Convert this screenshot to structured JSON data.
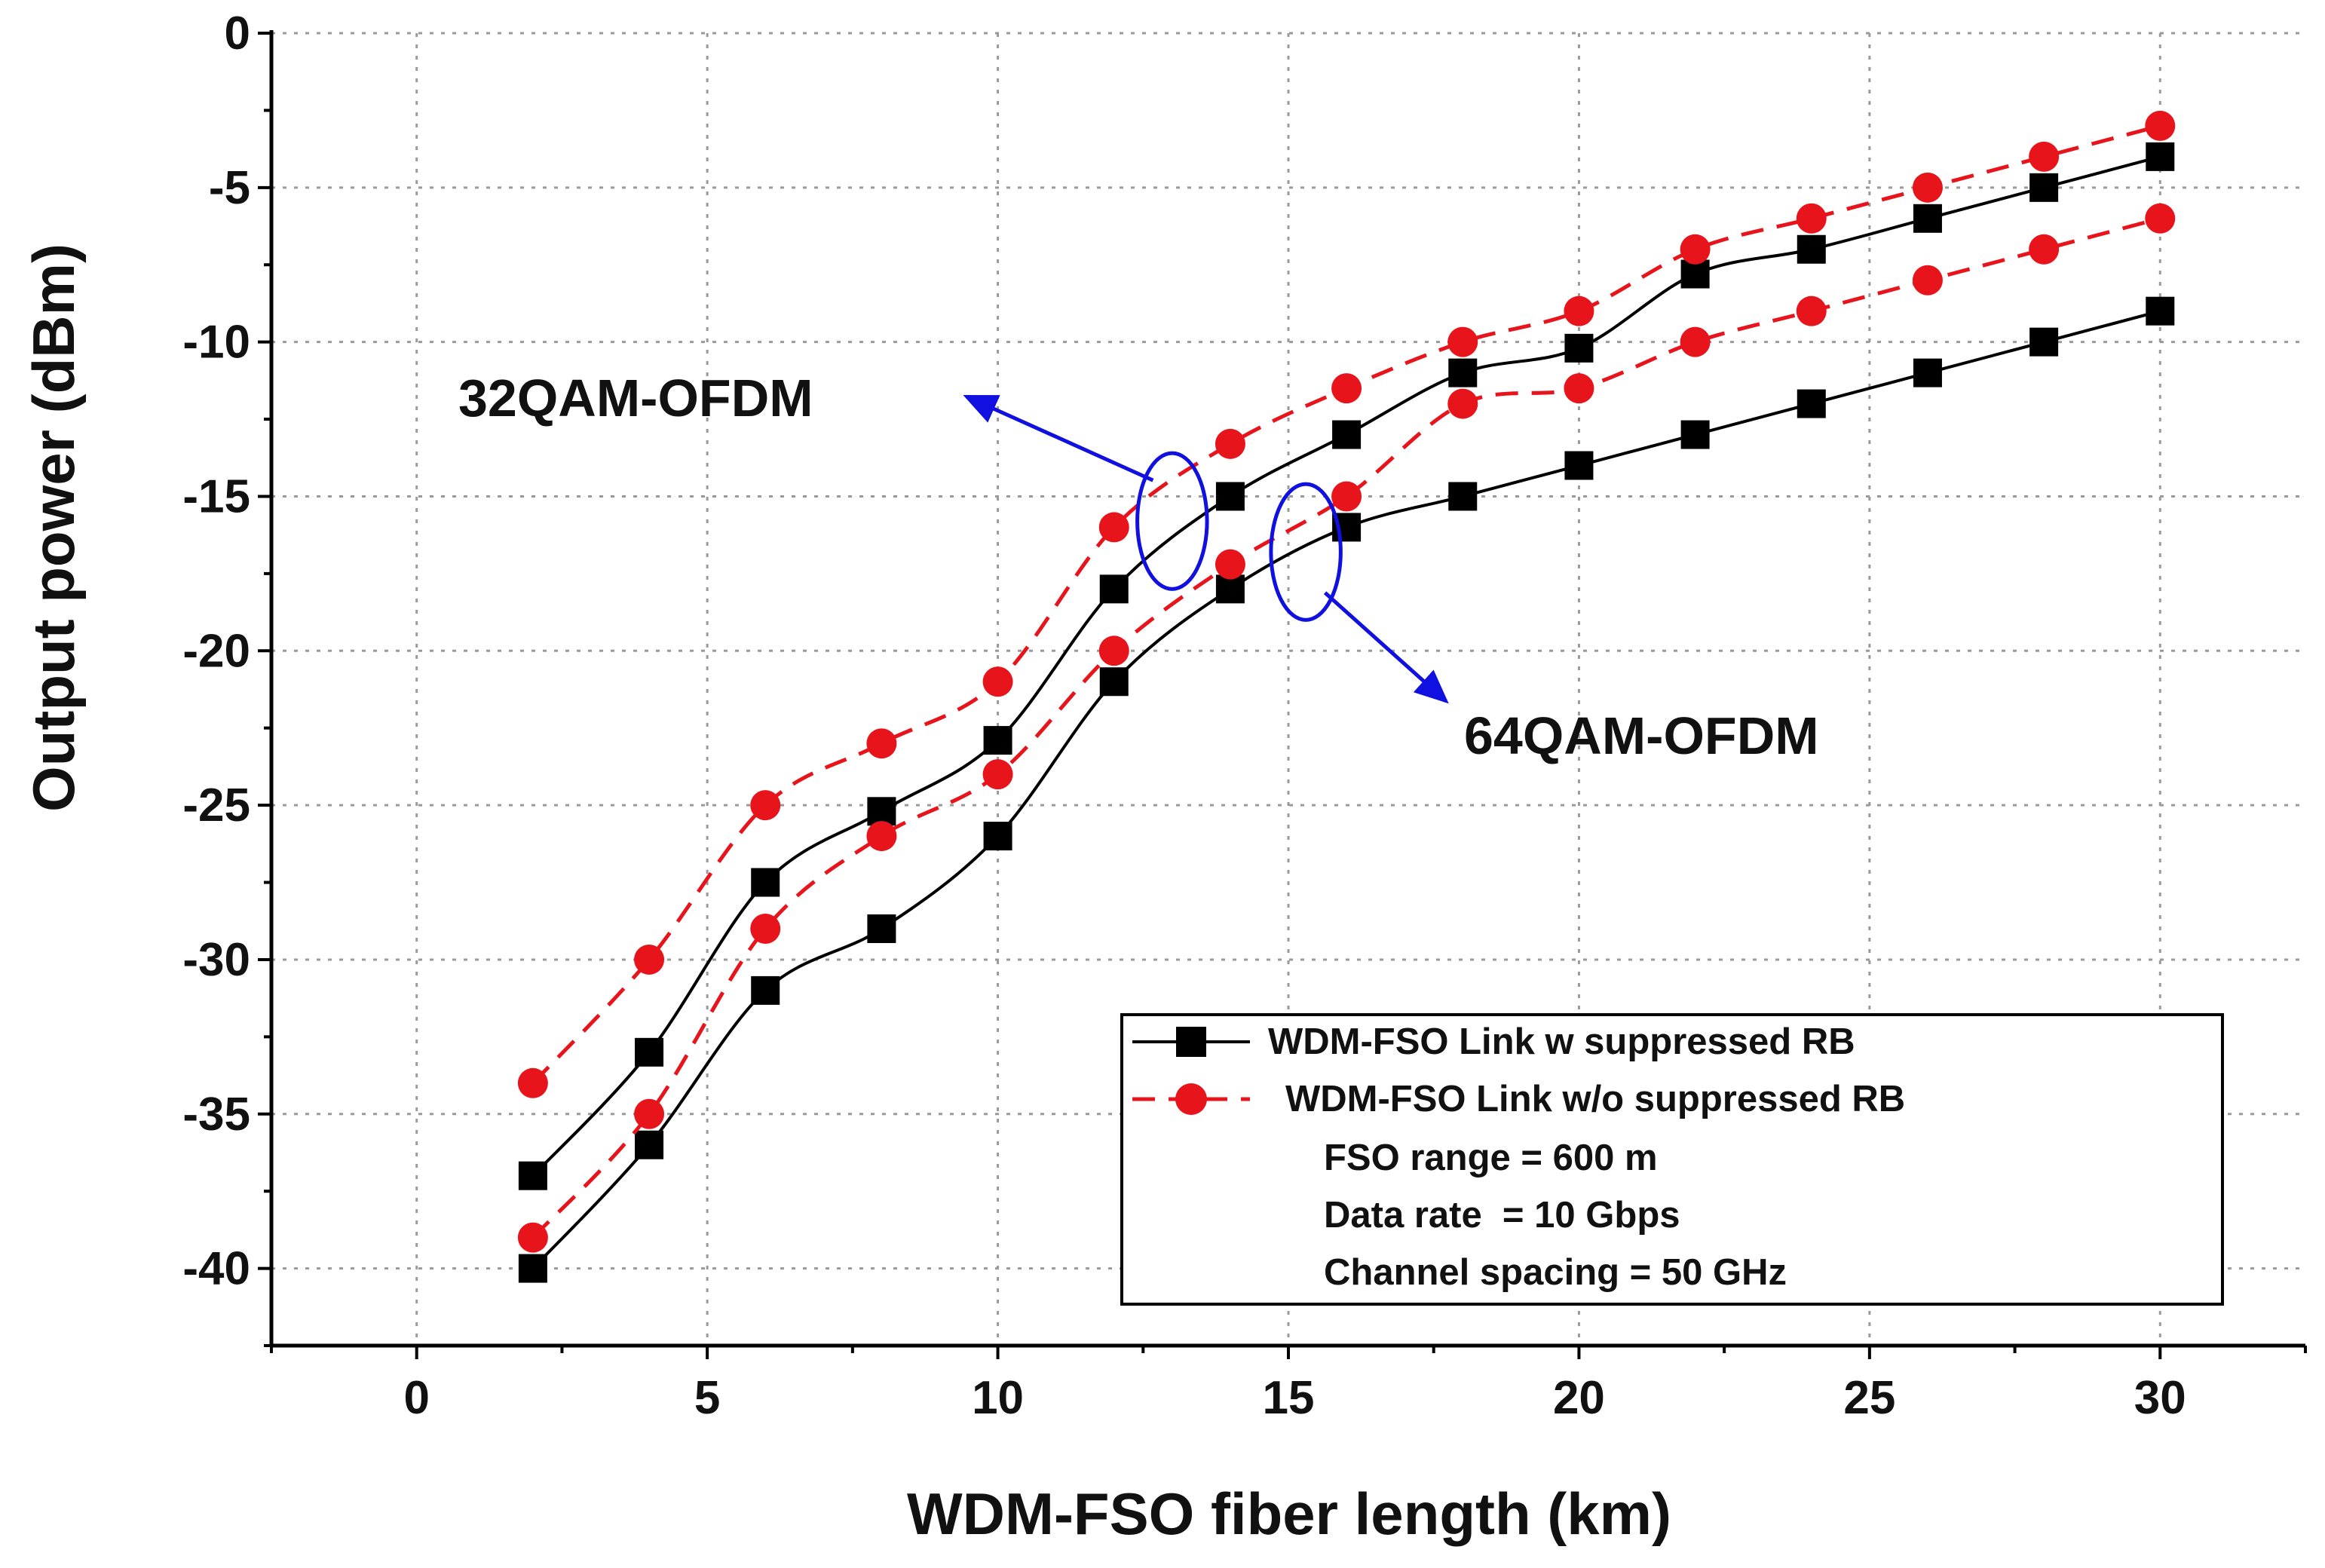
{
  "chart_data": {
    "type": "line",
    "title": "",
    "xlabel": "WDM-FSO fiber length (km)",
    "ylabel": "Output power (dBm)",
    "xlim": [
      -2.5,
      32.5
    ],
    "ylim": [
      -42.5,
      0
    ],
    "xticks": [
      0,
      5,
      10,
      15,
      20,
      25,
      30
    ],
    "xtick_labels": [
      "0",
      "5",
      "10",
      "15",
      "20",
      "25",
      "30"
    ],
    "yticks": [
      0,
      -5,
      -10,
      -15,
      -20,
      -25,
      -30,
      -35,
      -40
    ],
    "ytick_labels": [
      "0",
      "-5",
      "-10",
      "-15",
      "-20",
      "-25",
      "-30",
      "-35",
      "-40"
    ],
    "grid": true,
    "x": [
      2,
      4,
      6,
      8,
      10,
      12,
      14,
      16,
      18,
      20,
      22,
      24,
      26,
      28,
      30
    ],
    "series": [
      {
        "name": "WDM-FSO Link w suppressed RB",
        "group": "32QAM-OFDM",
        "style": "solid-square",
        "color": "#000000",
        "values": [
          -37,
          -33,
          -27.5,
          -25.2,
          -22.9,
          -18,
          -15,
          -13,
          -11,
          -10.2,
          -7.8,
          -7,
          -6,
          -5,
          -4
        ]
      },
      {
        "name": "WDM-FSO Link w/o suppressed RB",
        "group": "32QAM-OFDM",
        "style": "dashed-circle",
        "color": "#e8141c",
        "values": [
          -34,
          -30,
          -25,
          -23,
          -21,
          -16,
          -13.3,
          -11.5,
          -10,
          -9,
          -7,
          -6,
          -5,
          -4,
          -3
        ]
      },
      {
        "name": "WDM-FSO Link w suppressed RB",
        "group": "64QAM-OFDM",
        "style": "solid-square",
        "color": "#000000",
        "values": [
          -40,
          -36,
          -31,
          -29,
          -26,
          -21,
          -18,
          -16,
          -15,
          -14,
          -13,
          -12,
          -11,
          -10,
          -9
        ]
      },
      {
        "name": "WDM-FSO Link w/o suppressed RB",
        "group": "64QAM-OFDM",
        "style": "dashed-circle",
        "color": "#e8141c",
        "values": [
          -39,
          -35,
          -29,
          -26,
          -24,
          -20,
          -17.2,
          -15,
          -12,
          -11.5,
          -10,
          -9,
          -8,
          -7,
          -6
        ]
      }
    ],
    "annotations": [
      {
        "text": "32QAM-OFDM",
        "ellipse_at": [
          13,
          -15.8
        ],
        "ellipse_half_size": [
          0.6,
          2.2
        ]
      },
      {
        "text": "64QAM-OFDM",
        "ellipse_at": [
          15.3,
          -16.8
        ],
        "ellipse_half_size": [
          0.6,
          2.2
        ]
      }
    ],
    "legend": {
      "position": "bottom-right",
      "entries": [
        "WDM-FSO Link w suppressed RB",
        "WDM-FSO Link w/o suppressed RB"
      ],
      "notes": [
        "FSO range = 600 m",
        "Data rate  = 10 Gbps",
        "Channel spacing = 50 GHz"
      ]
    },
    "colors": {
      "axis": "#000000",
      "grid": "#9a9a9a",
      "solid": "#000000",
      "dashed": "#e8141c",
      "annotation": "#1010e0"
    }
  }
}
